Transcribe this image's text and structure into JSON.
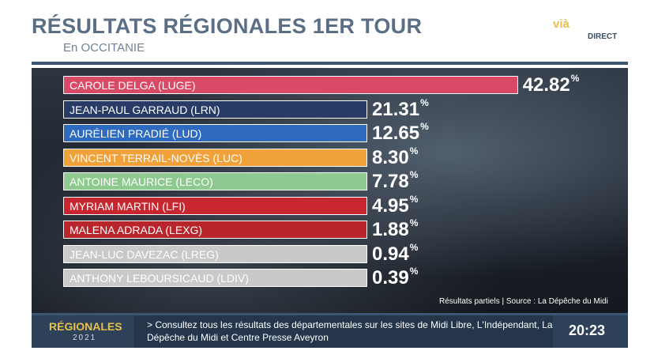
{
  "header": {
    "title": "RÉSULTATS RÉGIONALES 1ER TOUR",
    "subtitle": "En OCCITANIE",
    "logo": "vià",
    "live": "DIRECT"
  },
  "chart_data": {
    "type": "bar",
    "orientation": "horizontal",
    "xlim": [
      0,
      45
    ],
    "categories": [
      "CAROLE DELGA (LUGE)",
      "JEAN-PAUL GARRAUD (LRN)",
      "AURÉLIEN PRADIÉ (LUD)",
      "VINCENT TERRAIL-NOVÈS (LUC)",
      "ANTOINE MAURICE (LECO)",
      "MYRIAM MARTIN (LFI)",
      "MALENA ADRADA (LEXG)",
      "JEAN-LUC DAVEZAC (LREG)",
      "ANTHONY LEBOURSICAUD (LDIV)"
    ],
    "values": [
      42.82,
      21.31,
      12.65,
      8.3,
      7.78,
      4.95,
      1.88,
      0.94,
      0.39
    ],
    "value_labels": [
      "42.82",
      "21.31",
      "12.65",
      "8.30",
      "7.78",
      "4.95",
      "1.88",
      "0.94",
      "0.39"
    ],
    "unit": "%",
    "colors": [
      "#d94a67",
      "#283a66",
      "#2e6bbf",
      "#f0a13a",
      "#8ec98f",
      "#c8262f",
      "#b8262c",
      "#c9c9c9",
      "#c9c9c9"
    ]
  },
  "source": "Résultats partiels | Source : La Dépêche du Midi",
  "ticker": {
    "brand": "RÉGIONALES",
    "year": "2021",
    "text": "> Consultez tous les résultats des départementales sur les sites de Midi Libre, L'Indépendant, La Dépêche du Midi et Centre Presse Aveyron",
    "time": "20:23"
  }
}
